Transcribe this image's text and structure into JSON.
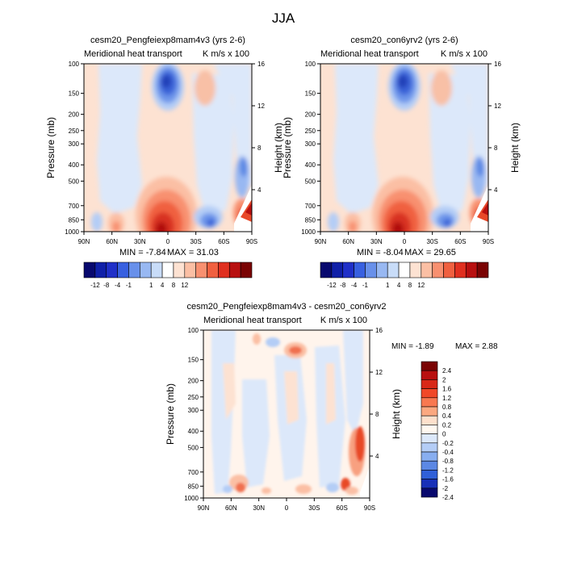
{
  "figure": {
    "title": "JJA"
  },
  "chart_data": [
    {
      "type": "heatmap",
      "title": "cesm20_Pengfeiexp8mam4v3 (yrs 2-6)",
      "left_label": "Meridional heat transport",
      "right_label": "K m/s x 100",
      "ylabel": "Pressure (mb)",
      "ylabel_right": "Height (km)",
      "x_ticks": [
        "90N",
        "60N",
        "30N",
        "0",
        "30S",
        "60S",
        "90S"
      ],
      "y_ticks": [
        "100",
        "150",
        "200",
        "250",
        "300",
        "400",
        "500",
        "700",
        "850",
        "1000"
      ],
      "y_ticks_right": [
        "16",
        "12",
        "8",
        "4"
      ],
      "min_label": "MIN =  -7.84",
      "max_label": "MAX =  31.03",
      "colorbar_labels": [
        "-12",
        "-8",
        "-4",
        "-1",
        "1",
        "4",
        "8",
        "12"
      ]
    },
    {
      "type": "heatmap",
      "title": "cesm20_con6yrv2 (yrs 2-6)",
      "left_label": "Meridional heat transport",
      "right_label": "K m/s x 100",
      "ylabel": "Pressure (mb)",
      "ylabel_right": "Height (km)",
      "x_ticks": [
        "90N",
        "60N",
        "30N",
        "0",
        "30S",
        "60S",
        "90S"
      ],
      "y_ticks": [
        "100",
        "150",
        "200",
        "250",
        "300",
        "400",
        "500",
        "700",
        "850",
        "1000"
      ],
      "y_ticks_right": [
        "16",
        "12",
        "8",
        "4"
      ],
      "min_label": "MIN =  -8.04",
      "max_label": "MAX =  29.65",
      "colorbar_labels": [
        "-12",
        "-8",
        "-4",
        "-1",
        "1",
        "4",
        "8",
        "12"
      ]
    },
    {
      "type": "heatmap",
      "title": "cesm20_Pengfeiexp8mam4v3 - cesm20_con6yrv2",
      "left_label": "Meridional heat transport",
      "right_label": "K m/s x 100",
      "ylabel": "Pressure (mb)",
      "ylabel_right": "Height (km)",
      "x_ticks": [
        "90N",
        "60N",
        "30N",
        "0",
        "30S",
        "60S",
        "90S"
      ],
      "y_ticks": [
        "100",
        "150",
        "200",
        "250",
        "300",
        "400",
        "500",
        "700",
        "850",
        "1000"
      ],
      "y_ticks_right": [
        "16",
        "12",
        "8",
        "4"
      ],
      "min_label": "MIN =  -1.89",
      "max_label": "MAX =   2.88",
      "colorbar_labels": [
        "2.4",
        "2",
        "1.6",
        "1.2",
        "0.8",
        "0.4",
        "0.2",
        "0",
        "-0.2",
        "-0.4",
        "-0.8",
        "-1.2",
        "-1.6",
        "-2",
        "-2.4"
      ]
    }
  ],
  "colors": {
    "colorbar_top": [
      "#08096e",
      "#1020a8",
      "#2030c8",
      "#3860e0",
      "#6890ea",
      "#98b8f2",
      "#c8dcf8",
      "#ffffff",
      "#fde2d2",
      "#fbbfa4",
      "#f89070",
      "#f06040",
      "#e03020",
      "#b81010",
      "#7a0404"
    ],
    "colorbar_diff": [
      "#7a0404",
      "#b81010",
      "#d82818",
      "#f04828",
      "#f87850",
      "#fba880",
      "#fde0cc",
      "#fff8f0",
      "#dce8fa",
      "#b4cdf6",
      "#88aef0",
      "#5c88e4",
      "#3060d8",
      "#1830b8",
      "#08096e"
    ]
  }
}
